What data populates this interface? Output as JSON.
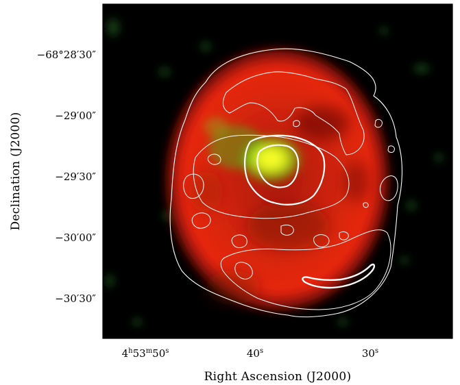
{
  "figure": {
    "x_axis_title": "Right Ascension (J2000)",
    "y_axis_title": "Declination (J2000)",
    "x_ticks": [
      {
        "h": "4",
        "m": "53",
        "s": "50",
        "text": "4h53m50s"
      },
      {
        "s": "40",
        "text": "40s"
      },
      {
        "s": "30",
        "text": "30s"
      }
    ],
    "y_ticks": [
      {
        "label": "−68°28′30″"
      },
      {
        "label": "−29′00″"
      },
      {
        "label": "−29′30″"
      },
      {
        "label": "−30′00″"
      },
      {
        "label": "−30′30″"
      }
    ],
    "colors": {
      "background": "#000000",
      "shell_emission": "#e0200e",
      "central_emission": "#f0ff20",
      "diffuse_green": "#1f5a1f",
      "contours": "#ffffff"
    }
  }
}
